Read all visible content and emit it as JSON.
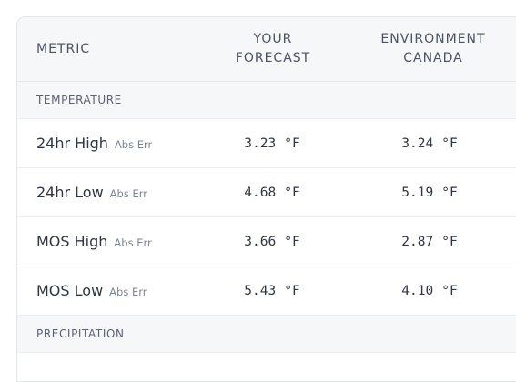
{
  "table": {
    "headers": {
      "metric": "METRIC",
      "yours_line1": "YOUR",
      "yours_line2": "FORECAST",
      "env_line1": "ENVIRONMENT",
      "env_line2": "CANADA"
    },
    "sections": [
      {
        "title": "TEMPERATURE",
        "rows": [
          {
            "name": "24hr High",
            "tag": "Abs Err",
            "yours": "3.23",
            "env": "3.24",
            "unit": "°F"
          },
          {
            "name": "24hr Low",
            "tag": "Abs Err",
            "yours": "4.68",
            "env": "5.19",
            "unit": "°F"
          },
          {
            "name": "MOS High",
            "tag": "Abs Err",
            "yours": "3.66",
            "env": "2.87",
            "unit": "°F"
          },
          {
            "name": "MOS Low",
            "tag": "Abs Err",
            "yours": "5.43",
            "env": "4.10",
            "unit": "°F"
          }
        ]
      },
      {
        "title": "PRECIPITATION",
        "rows": []
      }
    ]
  }
}
